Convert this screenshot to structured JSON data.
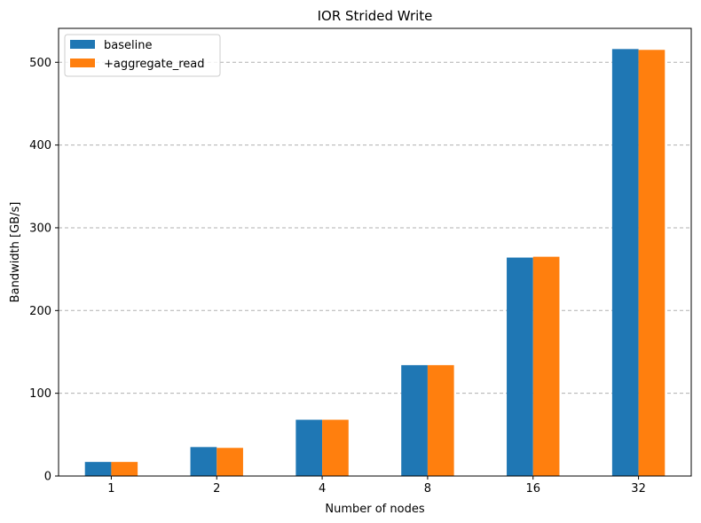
{
  "chart_data": {
    "type": "bar",
    "title": "IOR Strided Write",
    "xlabel": "Number of nodes",
    "ylabel": "Bandwidth [GB/s]",
    "categories": [
      "1",
      "2",
      "4",
      "8",
      "16",
      "32"
    ],
    "series": [
      {
        "name": "baseline",
        "color": "#1f77b4",
        "values": [
          17,
          35,
          68,
          134,
          264,
          516
        ]
      },
      {
        "name": "+aggregate_read",
        "color": "#ff7f0e",
        "values": [
          17,
          34,
          68,
          134,
          265,
          515
        ]
      }
    ],
    "ylim": [
      0,
      541
    ],
    "yticks": [
      0,
      100,
      200,
      300,
      400,
      500
    ],
    "grid": {
      "axis": "y",
      "style": "dashed",
      "color": "#b0b0b0"
    },
    "legend": "top-left"
  }
}
